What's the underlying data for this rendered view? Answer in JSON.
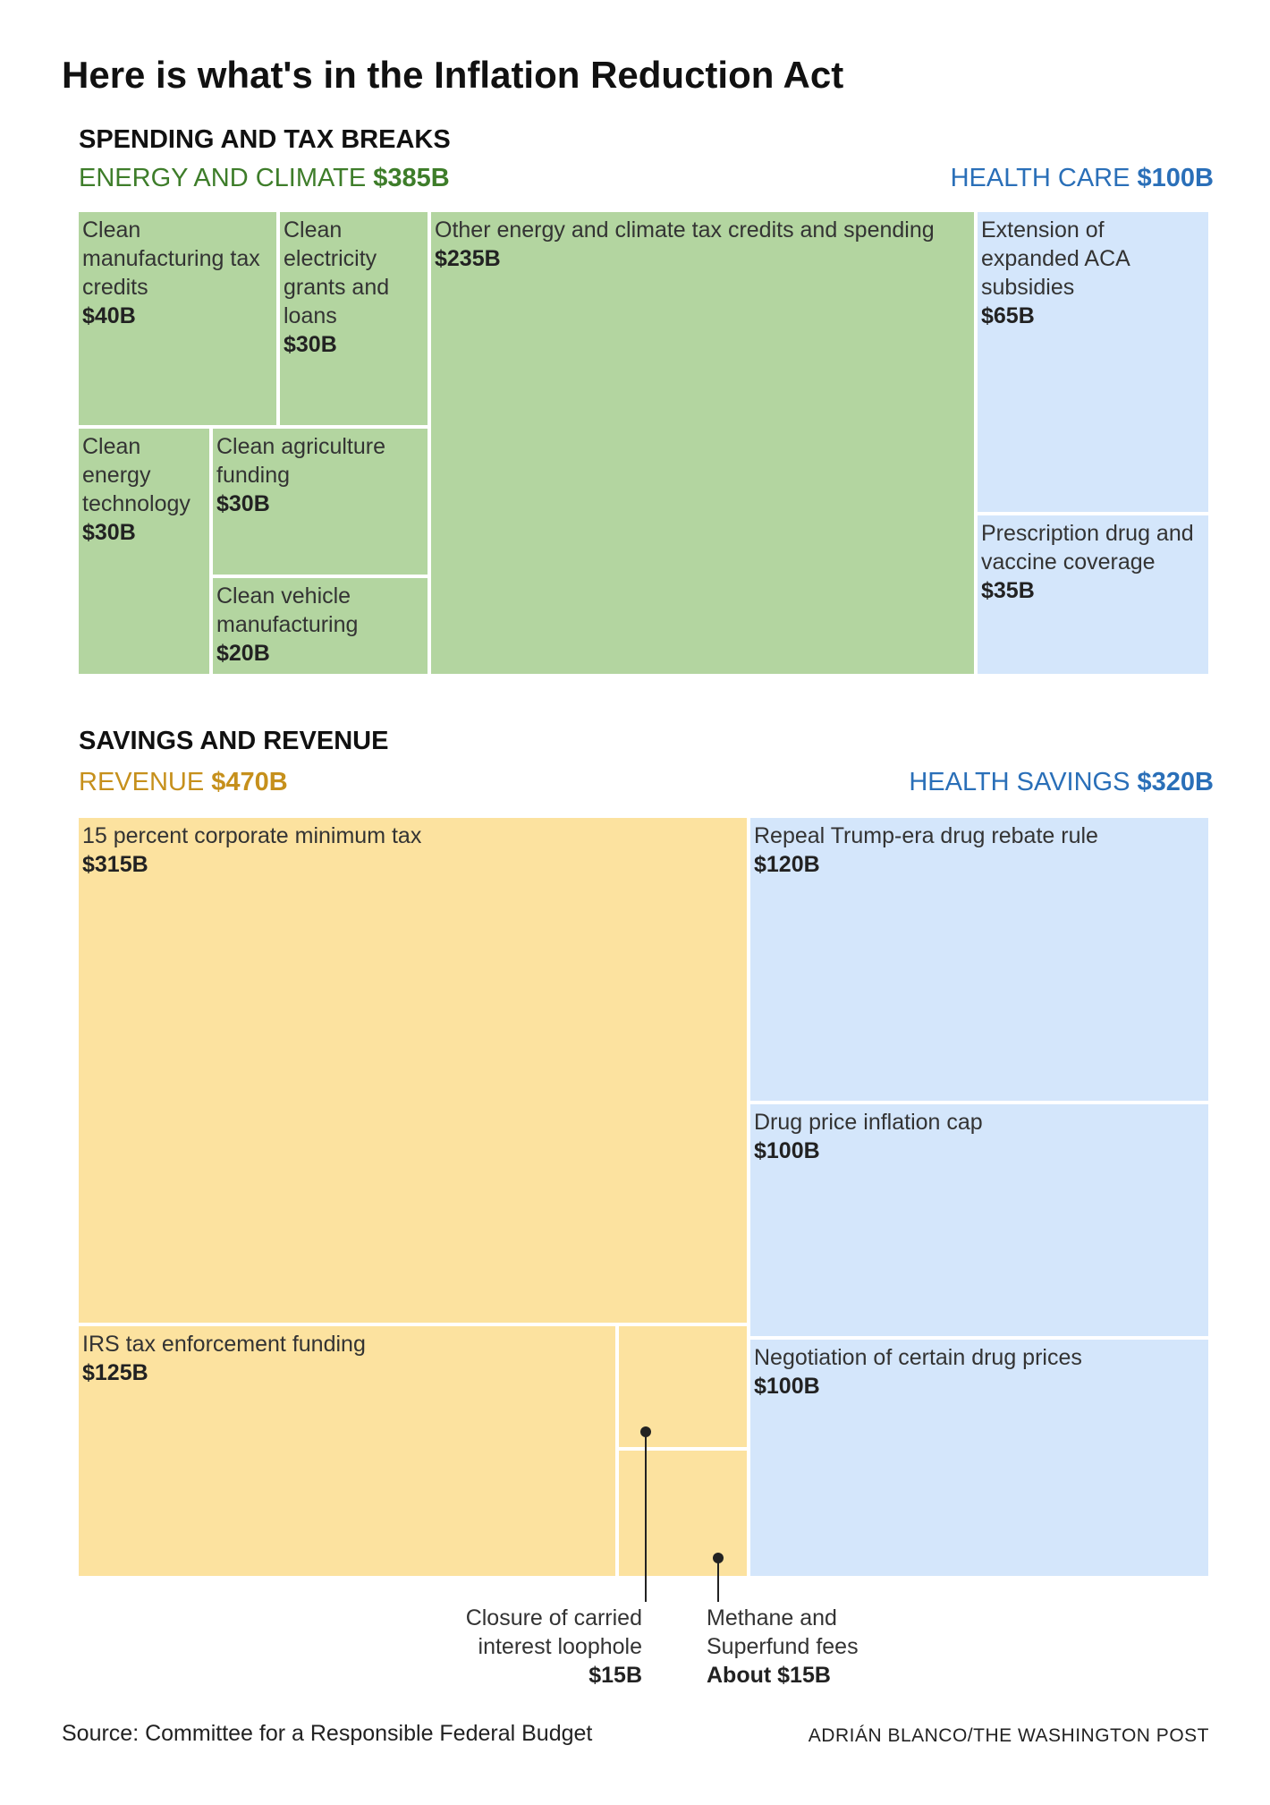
{
  "title": "Here is what's in the Inflation Reduction Act",
  "colors": {
    "energy": "#b3d5a0",
    "energy_text": "#3e7d2a",
    "health": "#d4e6fb",
    "health_text": "#2a6fb8",
    "revenue": "#fce29f",
    "revenue_text": "#c6901c"
  },
  "source": "Source: Committee for a Responsible Federal Budget",
  "credit": "ADRIÁN BLANCO/THE WASHINGTON POST",
  "chart_data": [
    {
      "type": "treemap",
      "title": "SPENDING AND TAX BREAKS",
      "groups": [
        {
          "name": "ENERGY AND CLIMATE",
          "total_label": "$385B",
          "total": 385,
          "items": [
            {
              "label": "Clean manufacturing tax credits",
              "value_label": "$40B",
              "value": 40
            },
            {
              "label": "Clean electricity grants and loans",
              "value_label": "$30B",
              "value": 30
            },
            {
              "label": "Other energy and climate tax credits and spending",
              "value_label": "$235B",
              "value": 235
            },
            {
              "label": "Clean energy technology",
              "value_label": "$30B",
              "value": 30
            },
            {
              "label": "Clean agriculture funding",
              "value_label": "$30B",
              "value": 30
            },
            {
              "label": "Clean vehicle manufacturing",
              "value_label": "$20B",
              "value": 20
            }
          ]
        },
        {
          "name": "HEALTH CARE",
          "total_label": "$100B",
          "total": 100,
          "items": [
            {
              "label": "Extension of expanded ACA subsidies",
              "value_label": "$65B",
              "value": 65
            },
            {
              "label": "Prescription drug and vaccine coverage",
              "value_label": "$35B",
              "value": 35
            }
          ]
        }
      ]
    },
    {
      "type": "treemap",
      "title": "SAVINGS AND REVENUE",
      "groups": [
        {
          "name": "REVENUE",
          "total_label": "$470B",
          "total": 470,
          "items": [
            {
              "label": "15 percent corporate minimum tax",
              "value_label": "$315B",
              "value": 315
            },
            {
              "label": "IRS tax enforcement funding",
              "value_label": "$125B",
              "value": 125
            },
            {
              "label": "Closure of carried interest loophole",
              "value_label": "$15B",
              "value": 15
            },
            {
              "label": "Methane and Superfund fees",
              "value_label": "About $15B",
              "value": 15
            }
          ]
        },
        {
          "name": "HEALTH SAVINGS",
          "total_label": "$320B",
          "total": 320,
          "items": [
            {
              "label": "Repeal Trump-era drug rebate rule",
              "value_label": "$120B",
              "value": 120
            },
            {
              "label": "Drug price inflation cap",
              "value_label": "$100B",
              "value": 100
            },
            {
              "label": "Negotiation of certain drug prices",
              "value_label": "$100B",
              "value": 100
            }
          ]
        }
      ]
    }
  ]
}
